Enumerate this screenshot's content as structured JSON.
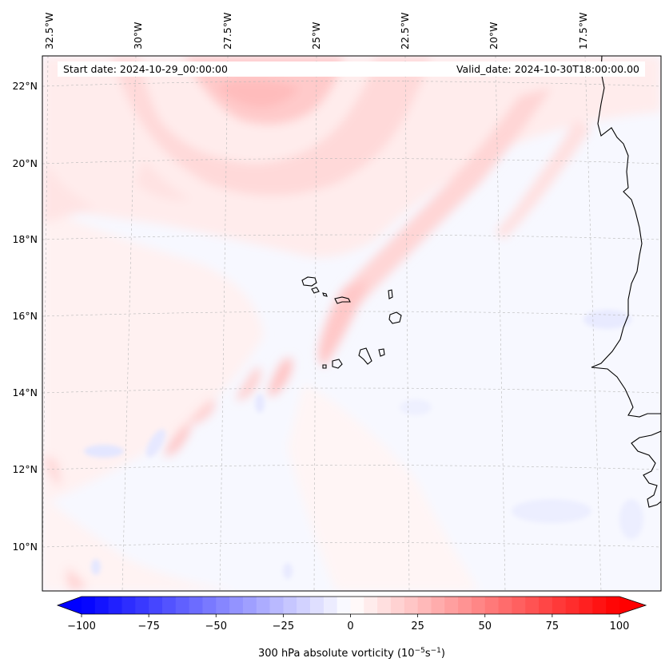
{
  "header": {
    "start_date": "Start date: 2024-10-29_00:00:00",
    "valid_date": "Valid_date: 2024-10-30T18:00:00.00"
  },
  "map": {
    "lon_labels": [
      "32.5°W",
      "30°W",
      "27.5°W",
      "25°W",
      "22.5°W",
      "20°W",
      "17.5°W"
    ],
    "lat_labels": [
      "22°N",
      "20°N",
      "18°N",
      "16°N",
      "14°N",
      "12°N",
      "10°N"
    ],
    "lon_range": [
      -33,
      -15.5
    ],
    "lat_range": [
      8.9,
      22.8
    ],
    "gridlines": true,
    "coastlines": true
  },
  "colorbar": {
    "label_main": "300 hPa absolute vorticity (10",
    "label_exp1": "−5",
    "label_mid": "s",
    "label_exp2": "−1",
    "label_close": ")",
    "range": [
      -100,
      100
    ],
    "ticks": [
      "−100",
      "−75",
      "−50",
      "−25",
      "0",
      "25",
      "50",
      "75",
      "100"
    ],
    "extend": "both",
    "colormap": "bwr",
    "color_low": "#0000ff",
    "color_mid": "#ffffff",
    "color_high": "#ff0000"
  }
}
